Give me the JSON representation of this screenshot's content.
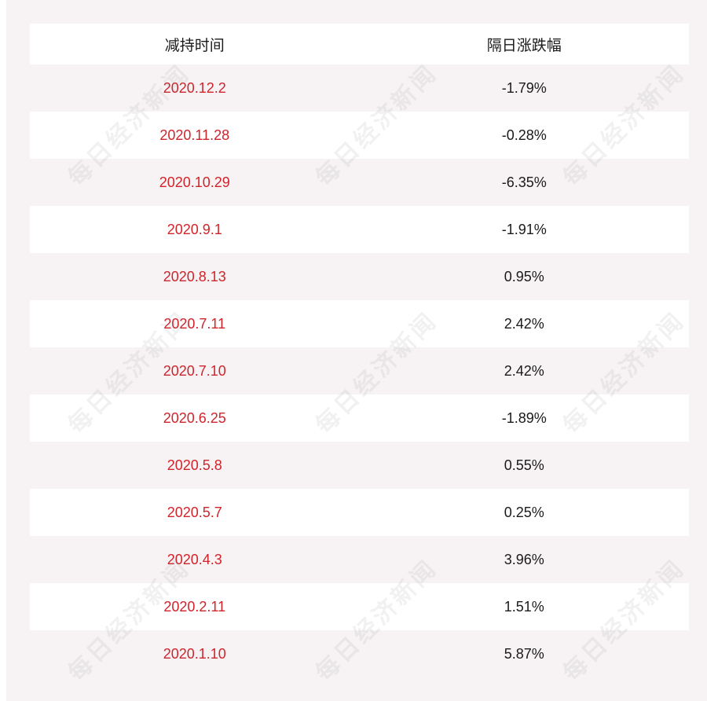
{
  "table": {
    "headers": {
      "date": "减持时间",
      "change": "隔日涨跌幅"
    },
    "rows": [
      {
        "date": "2020.12.2",
        "change": "-1.79%"
      },
      {
        "date": "2020.11.28",
        "change": "-0.28%"
      },
      {
        "date": "2020.10.29",
        "change": "-6.35%"
      },
      {
        "date": "2020.9.1",
        "change": "-1.91%"
      },
      {
        "date": "2020.8.13",
        "change": "0.95%"
      },
      {
        "date": "2020.7.11",
        "change": "2.42%"
      },
      {
        "date": "2020.7.10",
        "change": "2.42%"
      },
      {
        "date": "2020.6.25",
        "change": "-1.89%"
      },
      {
        "date": "2020.5.8",
        "change": "0.55%"
      },
      {
        "date": "2020.5.7",
        "change": "0.25%"
      },
      {
        "date": "2020.4.3",
        "change": "3.96%"
      },
      {
        "date": "2020.2.11",
        "change": "1.51%"
      },
      {
        "date": "2020.1.10",
        "change": "5.87%"
      }
    ]
  },
  "watermark": {
    "text": "每日经济新闻"
  },
  "colors": {
    "date_text": "#d0242b",
    "change_text": "#1a1a1a",
    "background": "#f7f3f4",
    "row_white": "#ffffff"
  }
}
